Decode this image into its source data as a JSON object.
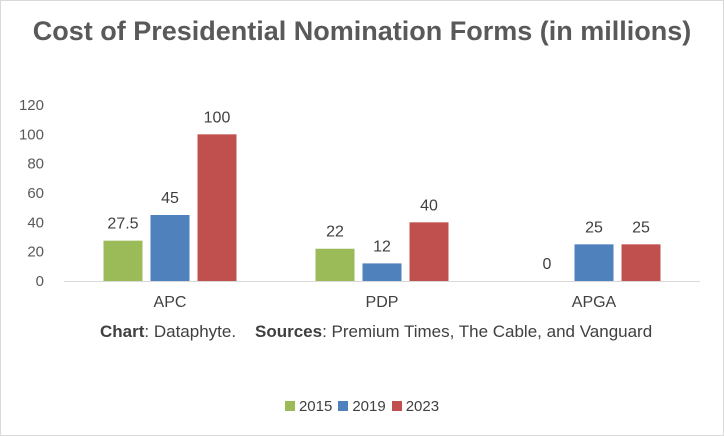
{
  "chart_data": {
    "type": "bar",
    "title": "Cost of Presidential Nomination Forms (in millions)",
    "categories": [
      "APC",
      "PDP",
      "APGA"
    ],
    "series": [
      {
        "name": "2015",
        "color": "#9bbb59",
        "values": [
          27.5,
          22,
          0
        ],
        "labels": [
          "27.5",
          "22",
          "0"
        ]
      },
      {
        "name": "2019",
        "color": "#4f81bd",
        "values": [
          45,
          12,
          25
        ],
        "labels": [
          "45",
          "12",
          "25"
        ]
      },
      {
        "name": "2023",
        "color": "#c0504d",
        "values": [
          100,
          40,
          25
        ],
        "labels": [
          "100",
          "40",
          "25"
        ]
      }
    ],
    "yticks": [
      "0",
      "20",
      "40",
      "60",
      "80",
      "100",
      "120"
    ],
    "ylim": [
      0,
      120
    ],
    "legend_position": "bottom",
    "grid": false
  },
  "source_note": {
    "chart_label": "Chart",
    "chart_text": ": Dataphyte.",
    "sources_label": "Sources",
    "sources_text": ": Premium Times, The Cable, and Vanguard"
  }
}
